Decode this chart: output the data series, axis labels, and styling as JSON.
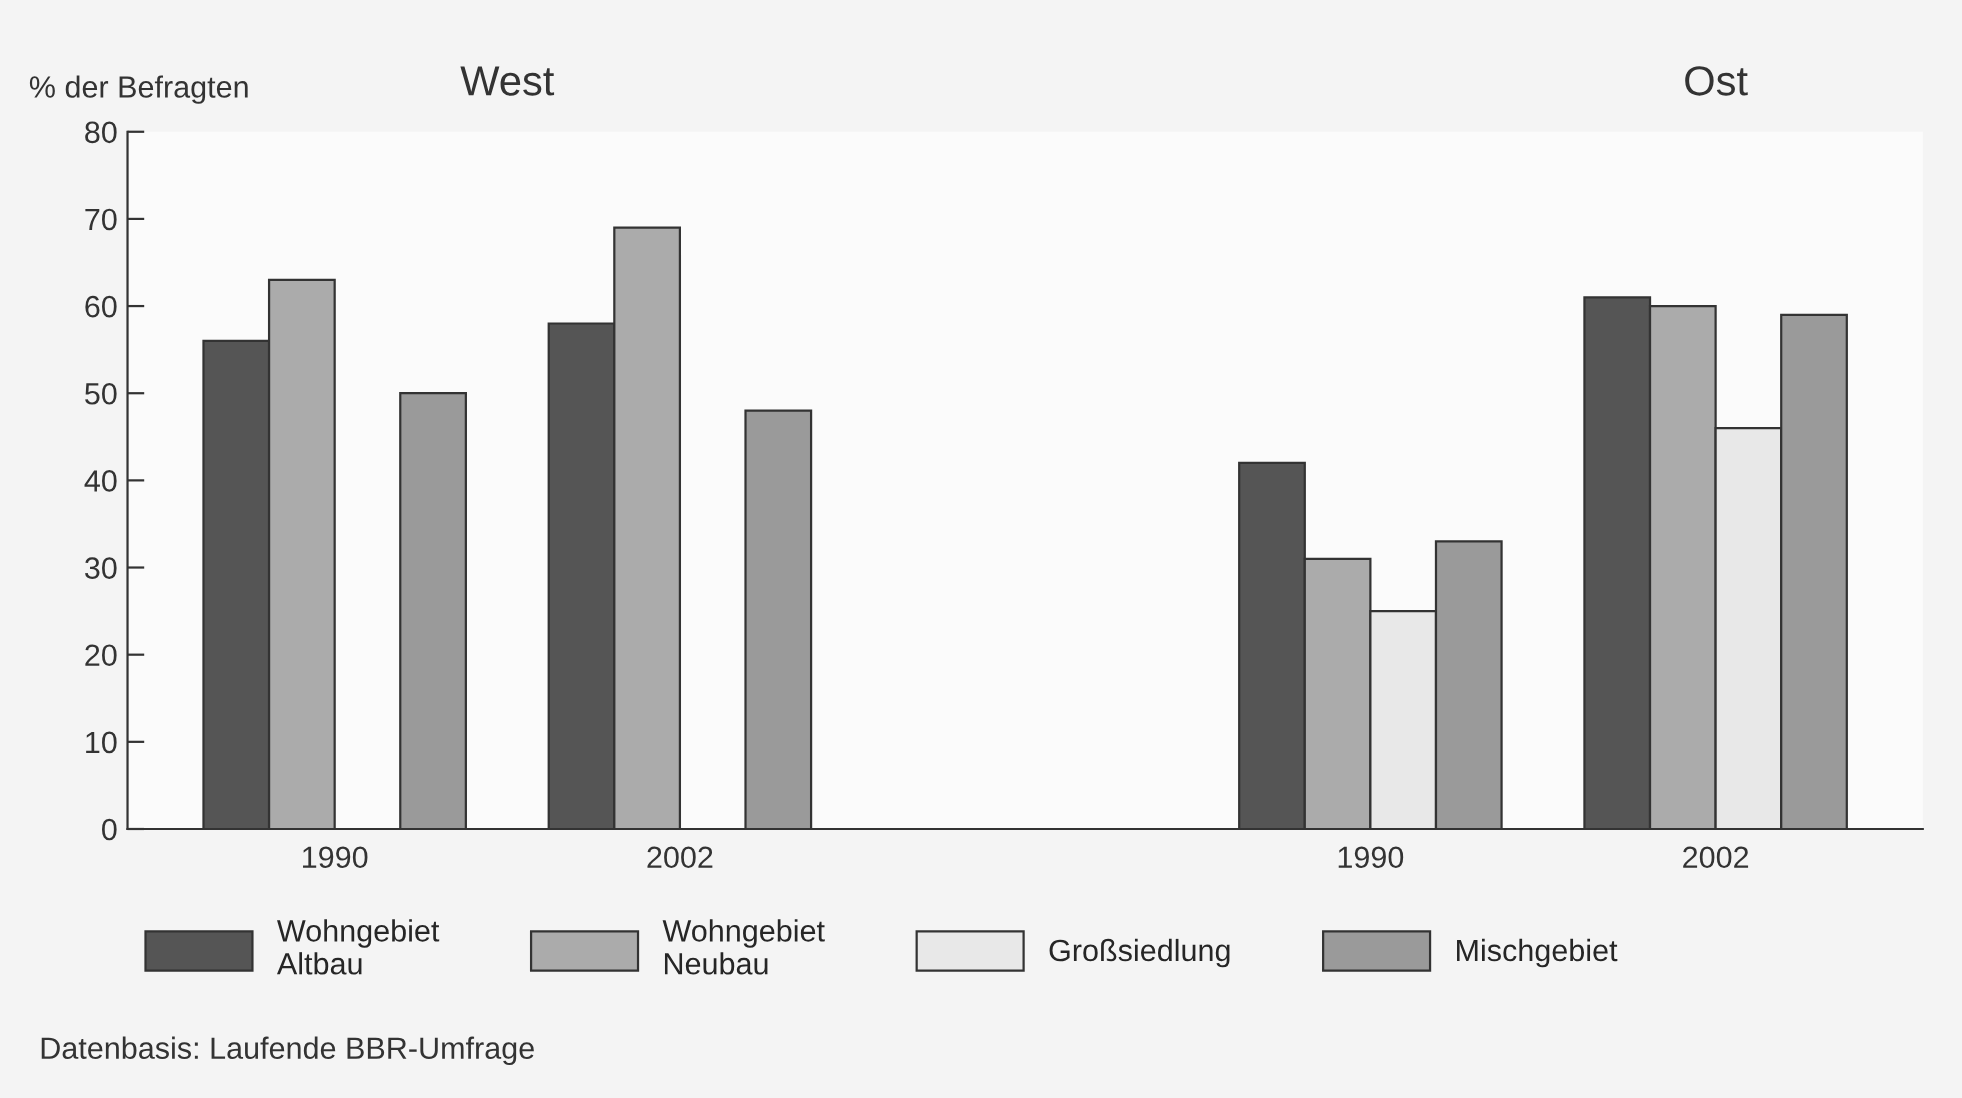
{
  "chart_data": {
    "type": "bar",
    "ylabel": "% der Befragten",
    "annotations": [
      "West",
      "Ost",
      "Datenbasis: Laufende BBR-Umfrage"
    ],
    "categories": [
      "1990",
      "2002",
      null,
      "1990",
      "2002"
    ],
    "series": [
      {
        "name": "Wohngebiet\nAltbau",
        "color": "#555555",
        "values": [
          56,
          58,
          null,
          42,
          61
        ]
      },
      {
        "name": "Wohngebiet\nNeubau",
        "color": "#ababab",
        "values": [
          63,
          69,
          null,
          31,
          60
        ]
      },
      {
        "name": "Großsiedlung",
        "color": "#e8e8e8",
        "values": [
          null,
          null,
          null,
          25,
          46
        ]
      },
      {
        "name": "Mischgebiet",
        "color": "#9a9a9a",
        "values": [
          50,
          48,
          null,
          33,
          59
        ]
      }
    ],
    "ylim": [
      0,
      80
    ],
    "yticks": [
      0,
      10,
      20,
      30,
      40,
      50,
      60,
      70,
      80
    ],
    "grid": false,
    "legend": "bottom"
  }
}
